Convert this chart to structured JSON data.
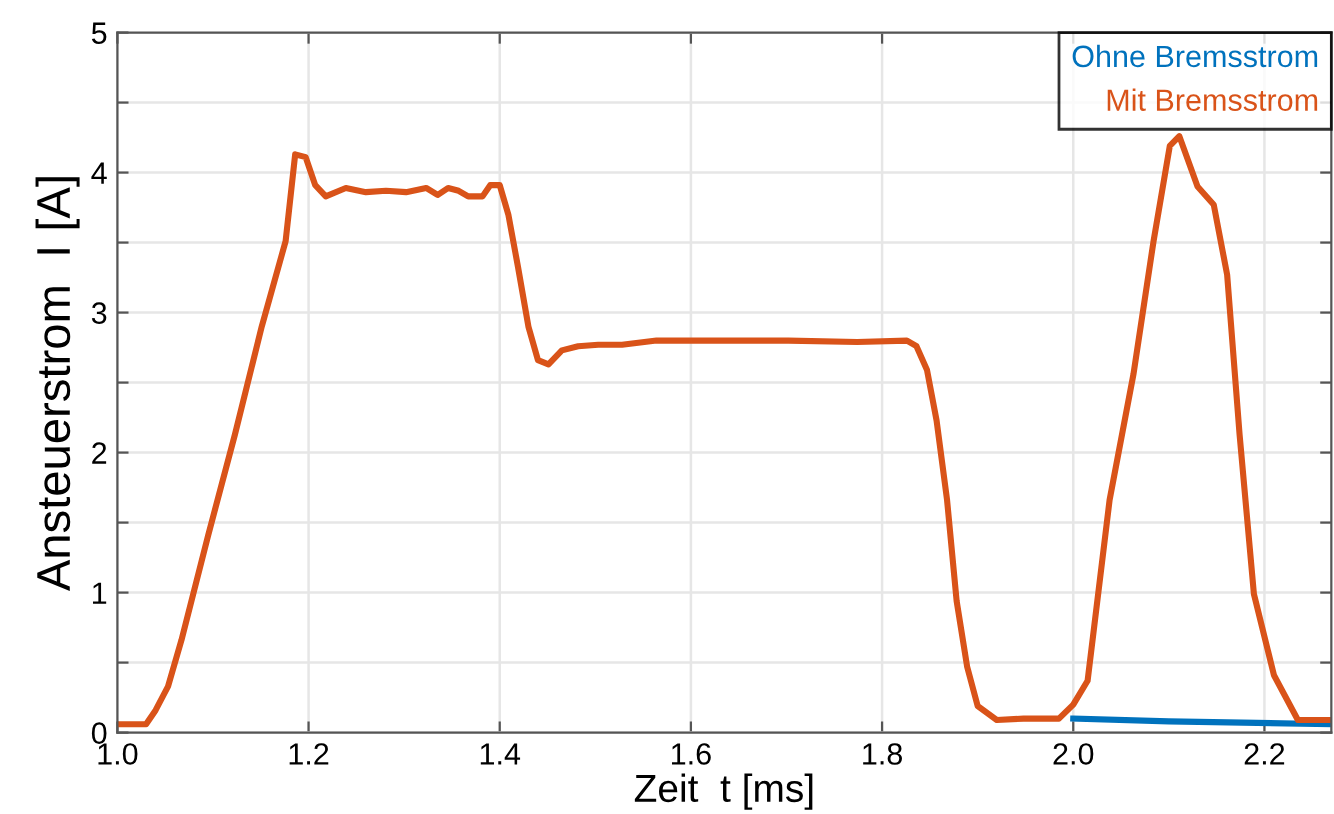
{
  "chart_data": {
    "type": "line",
    "xlabel": "Zeit  t [ms]",
    "ylabel": "Ansteuerstrom  I [A]",
    "xlim": [
      1.0,
      2.27
    ],
    "xticks": [
      {
        "value": 1.0,
        "label": "1.0"
      },
      1.2,
      1.4,
      1.6,
      1.8,
      {
        "value": 2.0,
        "label": "2.0"
      },
      2.2
    ],
    "ylim": [
      0,
      5
    ],
    "yticks": [
      0,
      {
        "value": 0.5,
        "label": null
      },
      1,
      {
        "value": 1.5,
        "label": null
      },
      2,
      {
        "value": 2.5,
        "label": null
      },
      3,
      {
        "value": 3.5,
        "label": null
      },
      4,
      {
        "value": 4.5,
        "label": null
      },
      5
    ],
    "grid": true,
    "legend": "top right",
    "line_style": "solid",
    "marker": "none",
    "series": [
      {
        "name": "Ohne Bremsstrom",
        "color": "#0072bd",
        "x": [
          2.0,
          2.1,
          2.27
        ],
        "values": [
          0.1,
          0.08,
          0.06
        ]
      },
      {
        "name": "Mit Bremsstrom",
        "color": "#d95319",
        "x": [
          1.0,
          1.03,
          1.04,
          1.053,
          1.067,
          1.095,
          1.123,
          1.151,
          1.176,
          1.186,
          1.197,
          1.207,
          1.218,
          1.239,
          1.26,
          1.281,
          1.302,
          1.323,
          1.335,
          1.346,
          1.357,
          1.367,
          1.382,
          1.39,
          1.4,
          1.409,
          1.419,
          1.43,
          1.44,
          1.451,
          1.465,
          1.482,
          1.503,
          1.528,
          1.564,
          1.633,
          1.702,
          1.774,
          1.826,
          1.836,
          1.847,
          1.857,
          1.868,
          1.878,
          1.889,
          1.9,
          1.92,
          1.948,
          1.985,
          2.0,
          2.015,
          2.038,
          2.063,
          2.084,
          2.101,
          2.111,
          2.13,
          2.147,
          2.161,
          2.174,
          2.189,
          2.21,
          2.235,
          2.27
        ],
        "values": [
          0.06,
          0.06,
          0.16,
          0.33,
          0.66,
          1.41,
          2.13,
          2.9,
          3.51,
          4.13,
          4.11,
          3.91,
          3.83,
          3.89,
          3.86,
          3.87,
          3.86,
          3.89,
          3.84,
          3.89,
          3.87,
          3.83,
          3.83,
          3.91,
          3.91,
          3.7,
          3.33,
          2.9,
          2.66,
          2.63,
          2.73,
          2.76,
          2.77,
          2.77,
          2.8,
          2.8,
          2.8,
          2.79,
          2.8,
          2.76,
          2.59,
          2.23,
          1.66,
          0.94,
          0.47,
          0.19,
          0.09,
          0.1,
          0.1,
          0.2,
          0.37,
          1.66,
          2.56,
          3.51,
          4.19,
          4.26,
          3.9,
          3.77,
          3.27,
          2.13,
          0.99,
          0.41,
          0.09,
          0.09
        ]
      }
    ]
  }
}
